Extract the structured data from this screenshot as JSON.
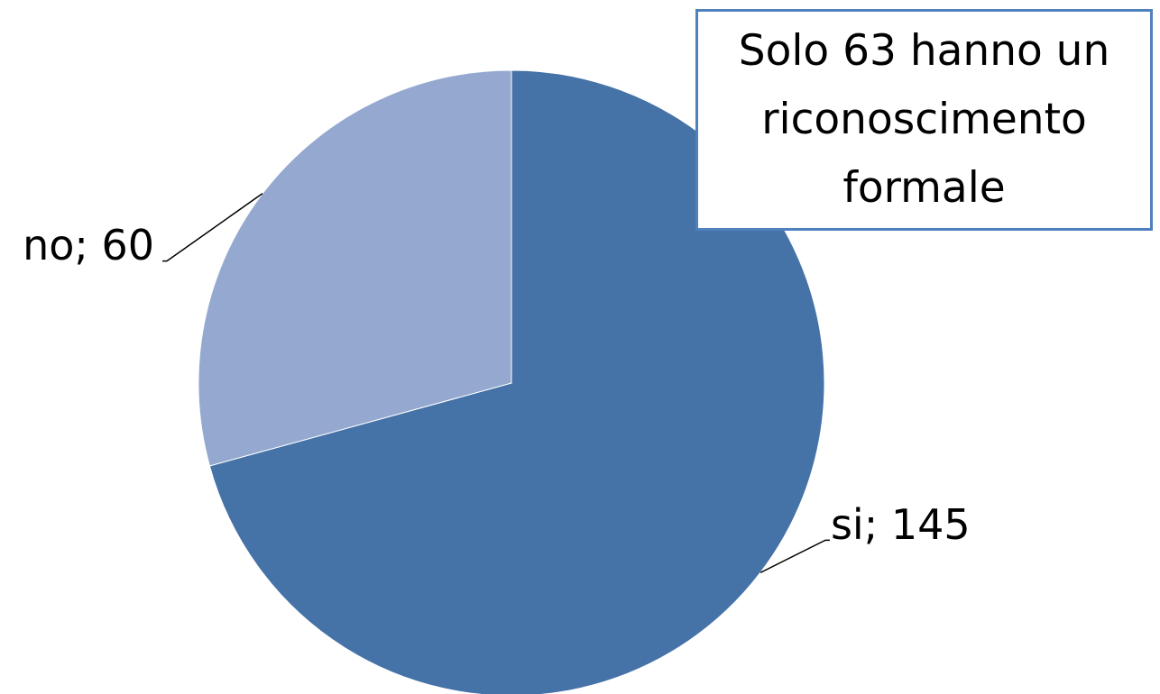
{
  "chart_data": {
    "type": "pie",
    "values": [
      145,
      60
    ],
    "value_labels": [
      "si; 145",
      "no; 60"
    ],
    "colors": [
      "#4572a7",
      "#95a9d0"
    ],
    "annotation": "Solo 63 hanno un riconoscimento formale"
  }
}
